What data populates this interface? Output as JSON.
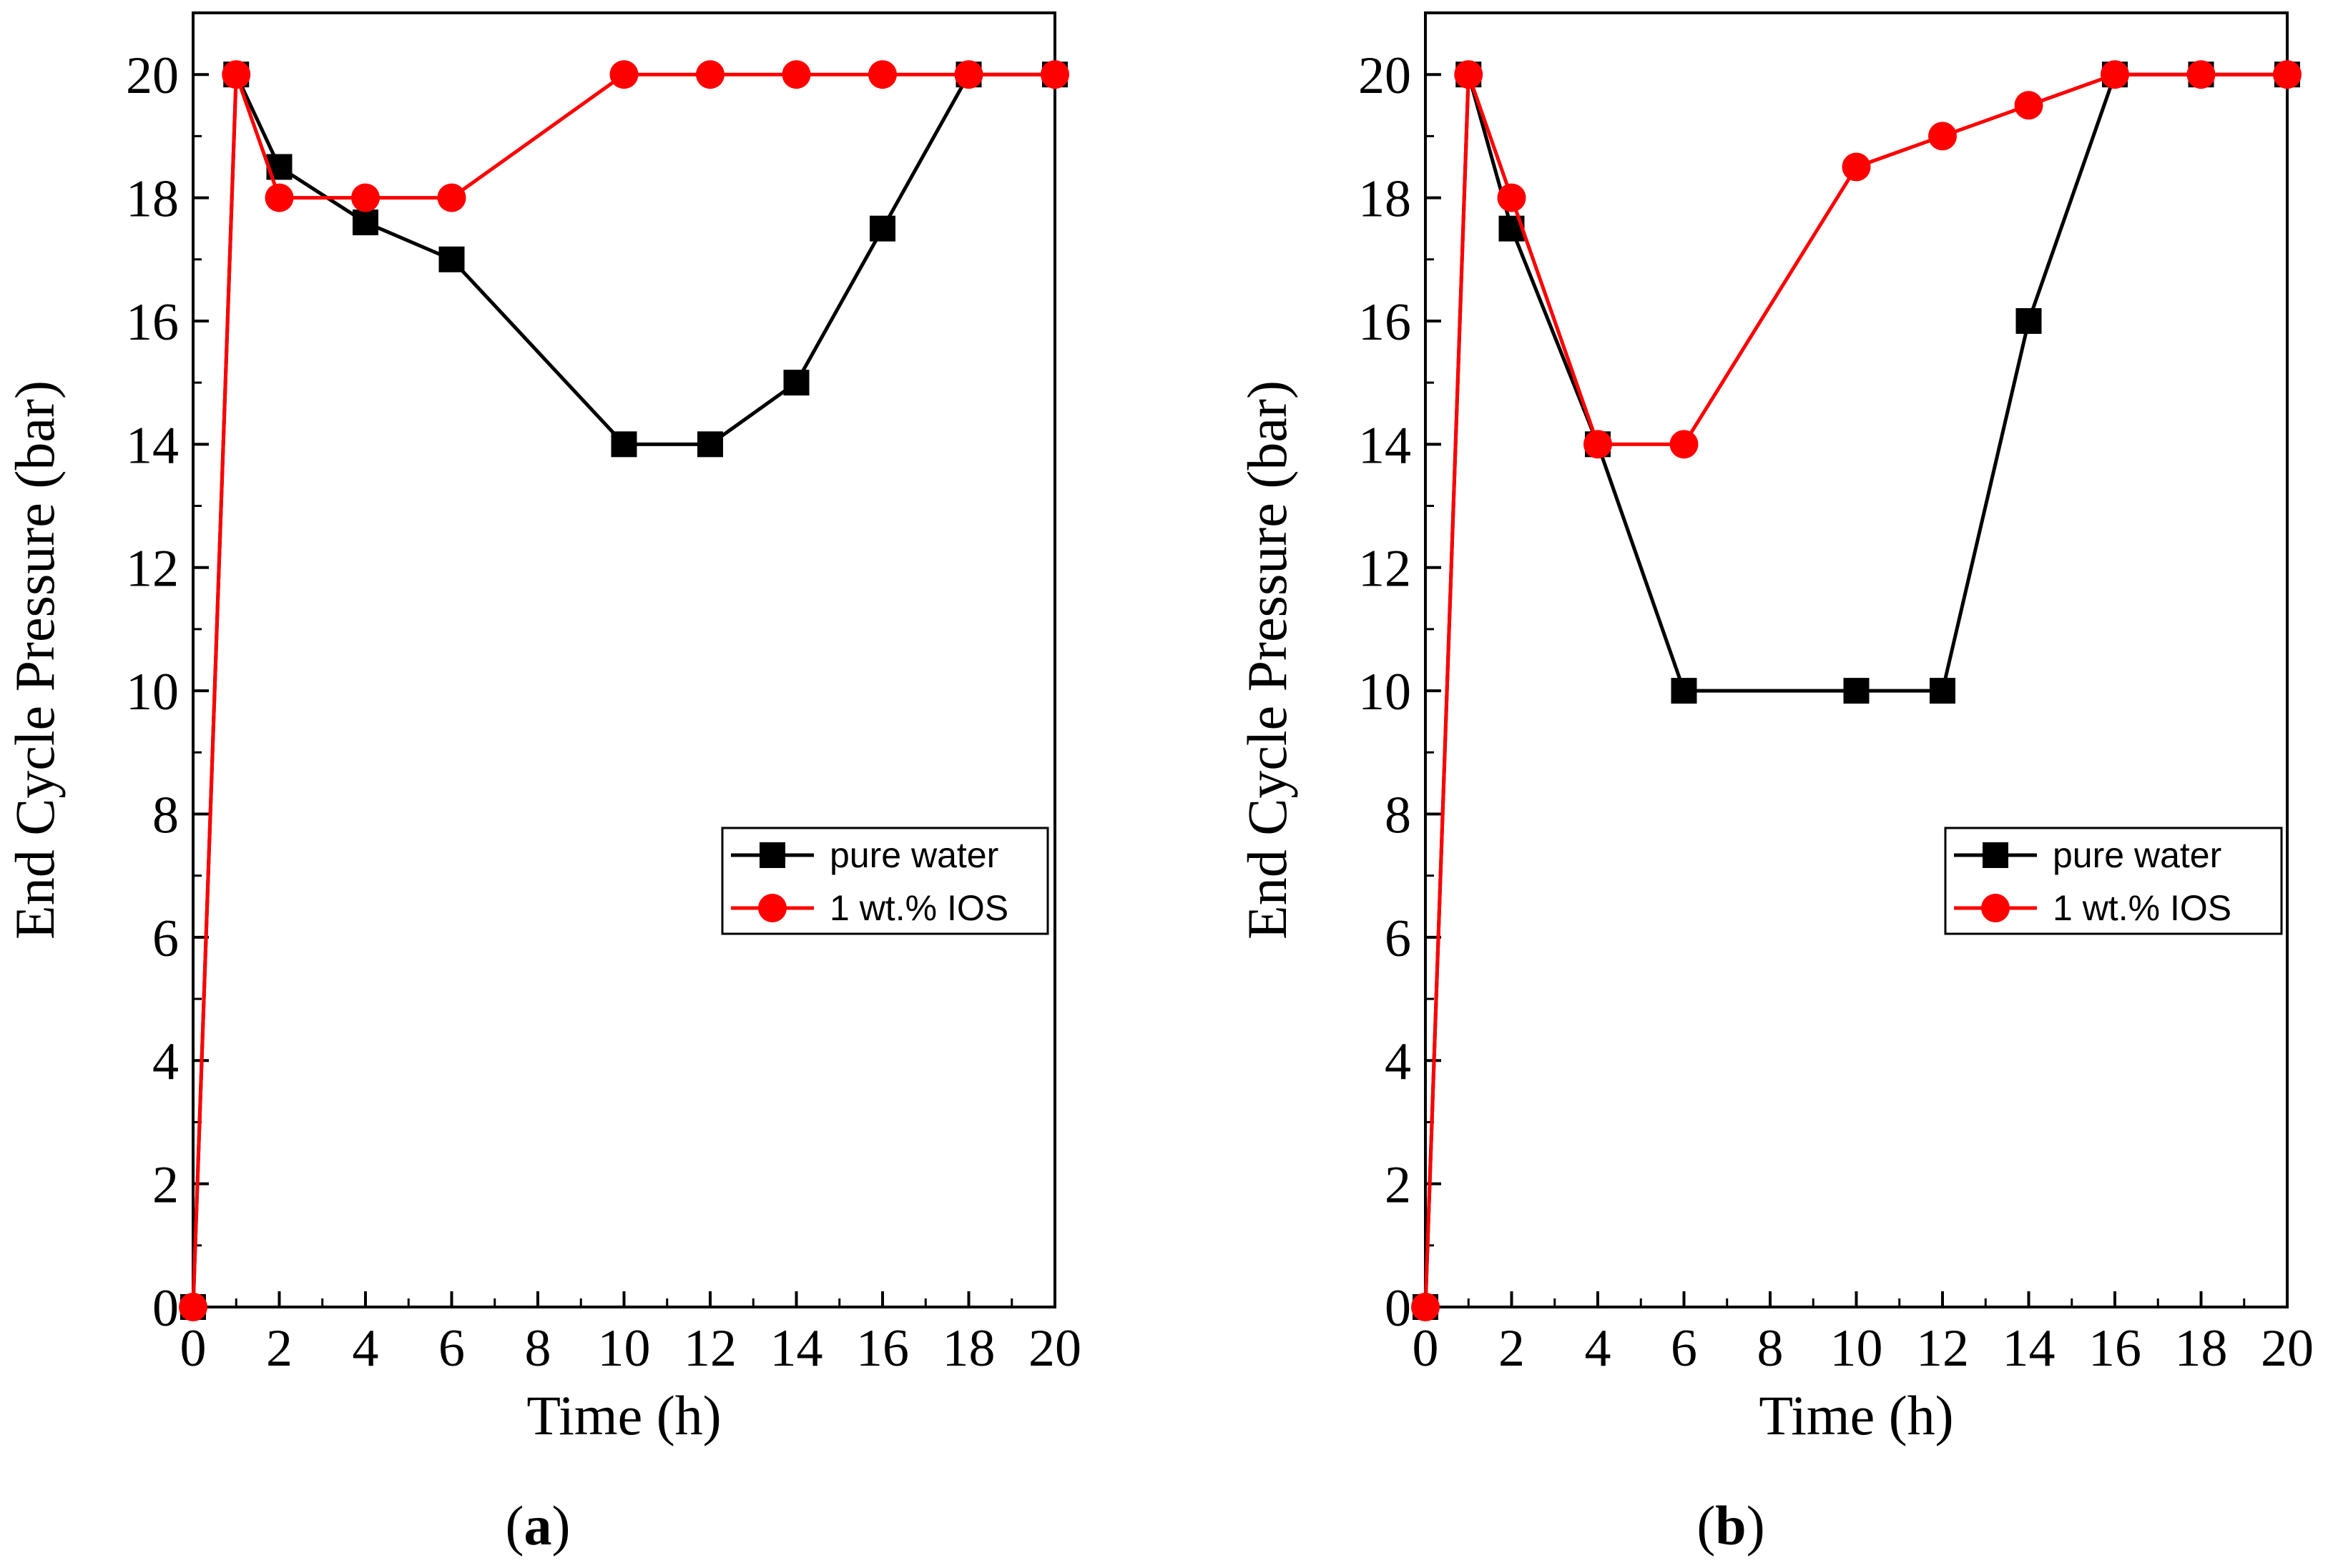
{
  "chart_data": [
    {
      "type": "line",
      "panel_label": "a",
      "xlabel": "Time (h)",
      "ylabel": "End Cycle Pressure (bar)",
      "xlim": [
        0,
        20
      ],
      "ylim": [
        0,
        21
      ],
      "xticks": [
        0,
        2,
        4,
        6,
        8,
        10,
        12,
        14,
        16,
        18,
        20
      ],
      "yticks": [
        0,
        2,
        4,
        6,
        8,
        10,
        12,
        14,
        16,
        18,
        20
      ],
      "legend_position": "center-right",
      "series": [
        {
          "name": "pure water",
          "color": "#000000",
          "marker": "square",
          "x": [
            0,
            1,
            2,
            4,
            6,
            10,
            12,
            14,
            16,
            18,
            20
          ],
          "y": [
            0,
            20,
            18.5,
            17.6,
            17,
            14,
            14,
            15,
            17.5,
            20,
            20
          ]
        },
        {
          "name": "1 wt.% IOS",
          "color": "#ff0000",
          "marker": "circle",
          "x": [
            0,
            1,
            2,
            4,
            6,
            10,
            12,
            14,
            16,
            18,
            20
          ],
          "y": [
            0,
            20,
            18,
            18,
            18,
            20,
            20,
            20,
            20,
            20,
            20
          ]
        }
      ]
    },
    {
      "type": "line",
      "panel_label": "b",
      "xlabel": "Time (h)",
      "ylabel": "End Cycle Pressure (bar)",
      "xlim": [
        0,
        20
      ],
      "ylim": [
        0,
        21
      ],
      "xticks": [
        0,
        2,
        4,
        6,
        8,
        10,
        12,
        14,
        16,
        18,
        20
      ],
      "yticks": [
        0,
        2,
        4,
        6,
        8,
        10,
        12,
        14,
        16,
        18,
        20
      ],
      "legend_position": "center-right",
      "series": [
        {
          "name": "pure water",
          "color": "#000000",
          "marker": "square",
          "x": [
            0,
            1,
            2,
            4,
            6,
            10,
            12,
            14,
            16,
            18,
            20
          ],
          "y": [
            0,
            20,
            17.5,
            14,
            10,
            10,
            10,
            16,
            20,
            20,
            20
          ]
        },
        {
          "name": "1 wt.% IOS",
          "color": "#ff0000",
          "marker": "circle",
          "x": [
            0,
            1,
            2,
            4,
            6,
            10,
            12,
            14,
            16,
            18,
            20
          ],
          "y": [
            0,
            20,
            18,
            14,
            14,
            18.5,
            19,
            19.5,
            20,
            20,
            20
          ]
        }
      ]
    }
  ]
}
